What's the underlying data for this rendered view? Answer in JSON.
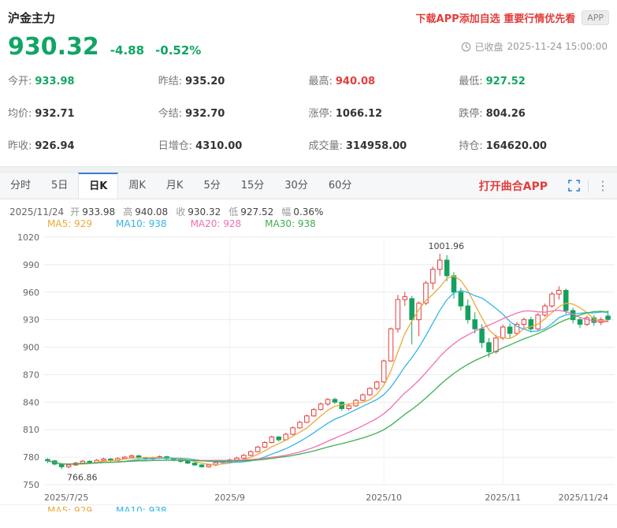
{
  "palette": {
    "up": "#e23e3e",
    "down": "#10a564",
    "text": "#333333"
  },
  "header": {
    "title": "沪金主力",
    "promo": "下载APP添加自选 重要行情优先看",
    "app_badge": "APP"
  },
  "price": {
    "last": "930.32",
    "change": "-4.88",
    "change_pct": "-0.52%",
    "status": "已收盘",
    "timestamp": "2025-11-24 15:00:00"
  },
  "quote_grid": {
    "cells": [
      {
        "label": "今开:",
        "value": "933.98",
        "color": "down"
      },
      {
        "label": "昨结:",
        "value": "935.20",
        "color": "text"
      },
      {
        "label": "最高:",
        "value": "940.08",
        "color": "up"
      },
      {
        "label": "最低:",
        "value": "927.52",
        "color": "down"
      },
      {
        "label": "均价:",
        "value": "932.71",
        "color": "text"
      },
      {
        "label": "今结:",
        "value": "932.70",
        "color": "text"
      },
      {
        "label": "涨停:",
        "value": "1066.12",
        "color": "text"
      },
      {
        "label": "跌停:",
        "value": "804.26",
        "color": "text"
      },
      {
        "label": "昨收:",
        "value": "926.94",
        "color": "text"
      },
      {
        "label": "日增仓:",
        "value": "4310.00",
        "color": "text"
      },
      {
        "label": "成交量:",
        "value": "314958.00",
        "color": "text"
      },
      {
        "label": "持仓:",
        "value": "164620.00",
        "color": "text"
      }
    ]
  },
  "tabs": {
    "items": [
      "分时",
      "5日",
      "日K",
      "周K",
      "月K",
      "5分",
      "15分",
      "30分",
      "60分"
    ],
    "active": "日K",
    "open_app": "打开曲合APP"
  },
  "chart_info": {
    "date": "2025/11/24",
    "items": [
      {
        "label": "开",
        "value": "933.98"
      },
      {
        "label": "高",
        "value": "940.08"
      },
      {
        "label": "收",
        "value": "930.32"
      },
      {
        "label": "低",
        "value": "927.52"
      },
      {
        "label": "幅",
        "value": "0.36%"
      }
    ]
  },
  "ma_legend": [
    {
      "text": "MA5: 929",
      "color": "#eda93b"
    },
    {
      "text": "MA10: 938",
      "color": "#35b5e5"
    },
    {
      "text": "MA20: 928",
      "color": "#f070b0"
    },
    {
      "text": "MA30: 938",
      "color": "#3faf4f"
    }
  ],
  "bottom_strip": [
    {
      "text": "MA5: 929",
      "color": "#eda93b"
    },
    {
      "text": "MA10: 938",
      "color": "#35b5e5"
    }
  ],
  "chart_data": {
    "type": "candlestick",
    "title": "沪金主力 日K",
    "ylim": [
      750,
      1020
    ],
    "yticks": [
      1020,
      990,
      960,
      930,
      900,
      870,
      840,
      810,
      780,
      750
    ],
    "x_axis_labels": [
      {
        "label": "2025/7/25",
        "idx": 0,
        "align": "start"
      },
      {
        "label": "2025/9",
        "idx": 26,
        "align": "center"
      },
      {
        "label": "2025/10",
        "idx": 48,
        "align": "center"
      },
      {
        "label": "2025/11",
        "idx": 65,
        "align": "center"
      },
      {
        "label": "2025/11/24",
        "idx": 80,
        "align": "end"
      }
    ],
    "annotations": [
      {
        "text": "1001.96",
        "type": "high",
        "idx": 56
      },
      {
        "text": "766.86",
        "type": "low",
        "idx": 2
      }
    ],
    "ma_series": [
      {
        "period": 5,
        "color": "#eda93b"
      },
      {
        "period": 10,
        "color": "#35b5e5"
      },
      {
        "period": 20,
        "color": "#f070b0"
      },
      {
        "period": 30,
        "color": "#3faf4f"
      }
    ],
    "up_color": "#e23e3e",
    "down_color": "#14a05e",
    "candles": [
      [
        777.5,
        779.0,
        773.5,
        776.0
      ],
      [
        776.0,
        777.0,
        771.0,
        772.5
      ],
      [
        772.0,
        773.5,
        766.86,
        769.5
      ],
      [
        769.5,
        773.0,
        768.0,
        771.5
      ],
      [
        771.5,
        775.0,
        770.5,
        773.5
      ],
      [
        773.5,
        777.0,
        772.5,
        775.5
      ],
      [
        775.5,
        776.5,
        772.5,
        774.5
      ],
      [
        774.5,
        778.0,
        773.5,
        776.5
      ],
      [
        776.5,
        779.5,
        775.5,
        778.0
      ],
      [
        778.0,
        779.0,
        775.0,
        776.5
      ],
      [
        776.5,
        780.0,
        775.5,
        778.5
      ],
      [
        778.5,
        781.5,
        777.5,
        780.0
      ],
      [
        780.0,
        783.0,
        779.0,
        781.5
      ],
      [
        781.5,
        782.5,
        778.0,
        779.5
      ],
      [
        779.5,
        780.5,
        776.5,
        778.0
      ],
      [
        778.0,
        780.5,
        777.0,
        779.0
      ],
      [
        779.0,
        782.0,
        778.0,
        780.5
      ],
      [
        780.5,
        781.5,
        777.5,
        778.5
      ],
      [
        778.5,
        779.5,
        775.5,
        777.0
      ],
      [
        777.0,
        778.0,
        774.0,
        775.5
      ],
      [
        775.5,
        776.5,
        772.5,
        773.5
      ],
      [
        773.5,
        774.5,
        770.5,
        771.5
      ],
      [
        771.5,
        772.5,
        768.5,
        769.5
      ],
      [
        769.5,
        773.0,
        768.5,
        771.5
      ],
      [
        771.5,
        775.5,
        770.5,
        774.0
      ],
      [
        774.0,
        777.0,
        773.0,
        775.5
      ],
      [
        775.5,
        778.5,
        774.5,
        777.0
      ],
      [
        777.0,
        780.5,
        776.0,
        779.0
      ],
      [
        779.0,
        783.5,
        778.0,
        782.0
      ],
      [
        782.0,
        787.5,
        781.0,
        786.0
      ],
      [
        786.0,
        792.5,
        785.0,
        791.0
      ],
      [
        791.0,
        797.5,
        790.0,
        796.0
      ],
      [
        796.0,
        803.5,
        795.0,
        802.0
      ],
      [
        802.0,
        803.0,
        797.0,
        799.0
      ],
      [
        799.0,
        806.5,
        798.0,
        805.0
      ],
      [
        805.0,
        813.5,
        804.0,
        812.0
      ],
      [
        812.0,
        819.5,
        811.0,
        818.0
      ],
      [
        818.0,
        826.5,
        817.0,
        825.0
      ],
      [
        825.0,
        833.5,
        824.0,
        832.0
      ],
      [
        832.0,
        839.5,
        831.0,
        838.0
      ],
      [
        838.0,
        844.5,
        836.0,
        843.0
      ],
      [
        843.0,
        845.0,
        838.0,
        840.0
      ],
      [
        840.0,
        841.0,
        830.5,
        833.0
      ],
      [
        833.0,
        838.5,
        831.0,
        836.0
      ],
      [
        836.0,
        843.5,
        835.0,
        842.0
      ],
      [
        842.0,
        849.5,
        841.0,
        848.0
      ],
      [
        848.0,
        856.5,
        847.0,
        855.0
      ],
      [
        855.0,
        863.5,
        853.0,
        862.0
      ],
      [
        862.0,
        886.5,
        861.0,
        885.0
      ],
      [
        885.0,
        921.5,
        884.0,
        920.0
      ],
      [
        920.0,
        957.0,
        916.0,
        952.0
      ],
      [
        952.0,
        960.5,
        945.0,
        955.0
      ],
      [
        953.0,
        956.0,
        903.0,
        930.0
      ],
      [
        930.0,
        950.0,
        912.0,
        948.0
      ],
      [
        948.0,
        972.5,
        946.0,
        970.0
      ],
      [
        970.0,
        988.0,
        963.0,
        985.0
      ],
      [
        985.0,
        1001.96,
        978.0,
        995.0
      ],
      [
        995.0,
        1000.5,
        972.0,
        978.0
      ],
      [
        978.0,
        982.0,
        953.0,
        960.0
      ],
      [
        960.0,
        965.0,
        940.0,
        945.0
      ],
      [
        945.0,
        952.0,
        926.0,
        930.0
      ],
      [
        930.0,
        938.0,
        915.0,
        920.0
      ],
      [
        920.0,
        925.0,
        899.0,
        905.0
      ],
      [
        905.0,
        910.0,
        889.0,
        895.0
      ],
      [
        895.0,
        913.5,
        893.0,
        910.0
      ],
      [
        910.0,
        924.5,
        908.0,
        922.0
      ],
      [
        922.0,
        926.0,
        910.0,
        915.0
      ],
      [
        915.0,
        927.5,
        913.0,
        925.0
      ],
      [
        925.0,
        932.5,
        921.0,
        930.0
      ],
      [
        930.0,
        933.0,
        916.0,
        920.0
      ],
      [
        920.0,
        937.5,
        918.0,
        935.0
      ],
      [
        935.0,
        947.5,
        933.0,
        945.0
      ],
      [
        945.0,
        960.5,
        943.0,
        958.0
      ],
      [
        958.0,
        966.5,
        952.0,
        962.0
      ],
      [
        962.0,
        964.0,
        936.0,
        940.0
      ],
      [
        940.0,
        943.0,
        926.0,
        930.0
      ],
      [
        930.0,
        933.0,
        921.0,
        925.0
      ],
      [
        925.0,
        934.5,
        923.0,
        932.0
      ],
      [
        932.0,
        935.0,
        923.5,
        927.0
      ],
      [
        927.0,
        932.5,
        924.0,
        930.0
      ],
      [
        933.98,
        940.08,
        927.52,
        930.32
      ]
    ]
  }
}
